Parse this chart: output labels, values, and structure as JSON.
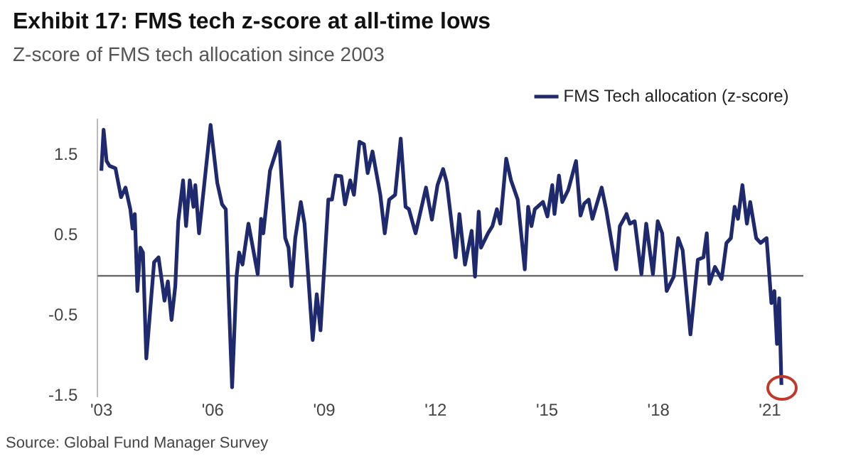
{
  "chart_data": {
    "type": "line",
    "title": "Exhibit 17: FMS tech z-score at all-time lows",
    "subtitle": "Z-score of FMS tech allocation since 2003",
    "x": [
      2003.0,
      2003.06,
      2003.14,
      2003.22,
      2003.38,
      2003.53,
      2003.65,
      2003.78,
      2003.84,
      2003.9,
      2003.97,
      2004.05,
      2004.12,
      2004.21,
      2004.42,
      2004.54,
      2004.7,
      2004.79,
      2004.89,
      2004.99,
      2005.07,
      2005.2,
      2005.28,
      2005.38,
      2005.48,
      2005.53,
      2005.63,
      2005.94,
      2006.12,
      2006.25,
      2006.35,
      2006.43,
      2006.52,
      2006.64,
      2006.71,
      2006.8,
      2006.96,
      2007.21,
      2007.3,
      2007.36,
      2007.54,
      2007.79,
      2007.95,
      2008.04,
      2008.12,
      2008.22,
      2008.37,
      2008.47,
      2008.69,
      2008.8,
      2008.9,
      2009.11,
      2009.21,
      2009.31,
      2009.46,
      2009.56,
      2009.7,
      2009.8,
      2009.95,
      2010.07,
      2010.17,
      2010.3,
      2010.51,
      2010.63,
      2010.75,
      2010.91,
      2011.06,
      2011.19,
      2011.28,
      2011.46,
      2011.74,
      2011.9,
      2012.05,
      2012.2,
      2012.3,
      2012.54,
      2012.64,
      2012.79,
      2012.97,
      2013.06,
      2013.16,
      2013.22,
      2013.41,
      2013.53,
      2013.65,
      2013.74,
      2013.9,
      2014.03,
      2014.21,
      2014.4,
      2014.49,
      2014.58,
      2014.67,
      2014.89,
      2015.01,
      2015.14,
      2015.2,
      2015.32,
      2015.41,
      2015.57,
      2015.78,
      2015.9,
      2016.0,
      2016.12,
      2016.22,
      2016.47,
      2016.59,
      2016.86,
      2016.96,
      2017.14,
      2017.23,
      2017.36,
      2017.54,
      2017.67,
      2017.85,
      2017.98,
      2018.1,
      2018.22,
      2018.41,
      2018.53,
      2018.65,
      2018.86,
      2019.06,
      2019.21,
      2019.3,
      2019.37,
      2019.52,
      2019.7,
      2019.83,
      2019.95,
      2020.05,
      2020.14,
      2020.26,
      2020.38,
      2020.47,
      2020.63,
      2020.75,
      2020.91,
      2021.04,
      2021.12,
      2021.19,
      2021.25,
      2021.31
    ],
    "series": [
      {
        "name": "FMS Tech allocation (z-score)",
        "color": "#1f2a6e",
        "values": [
          1.31,
          1.82,
          1.43,
          1.37,
          1.34,
          0.98,
          1.1,
          0.83,
          0.59,
          0.77,
          -0.19,
          0.35,
          0.29,
          -1.03,
          0.17,
          0.23,
          -0.31,
          -0.07,
          -0.55,
          -0.13,
          0.68,
          1.19,
          0.62,
          1.19,
          0.86,
          1.13,
          0.53,
          1.88,
          1.16,
          0.89,
          0.83,
          -0.28,
          -1.39,
          -0.01,
          0.29,
          0.14,
          0.65,
          0.02,
          0.71,
          0.53,
          1.31,
          1.67,
          0.47,
          0.35,
          -0.13,
          0.47,
          0.92,
          0.65,
          -0.8,
          -0.23,
          -0.68,
          0.95,
          0.95,
          1.25,
          1.24,
          0.89,
          1.19,
          1.01,
          1.67,
          1.64,
          1.28,
          1.55,
          1.01,
          0.53,
          0.95,
          1.01,
          1.71,
          0.86,
          0.83,
          0.53,
          1.1,
          0.7,
          1.13,
          1.33,
          1.16,
          0.23,
          0.77,
          0.14,
          0.56,
          -0.01,
          0.8,
          0.35,
          0.53,
          0.62,
          0.83,
          0.65,
          1.46,
          1.19,
          0.95,
          0.08,
          0.86,
          0.62,
          0.83,
          0.92,
          0.74,
          1.13,
          0.77,
          1.25,
          0.92,
          1.07,
          1.43,
          0.75,
          0.9,
          0.95,
          0.71,
          1.1,
          0.83,
          0.08,
          0.62,
          0.77,
          0.65,
          0.68,
          0.02,
          0.65,
          0.02,
          0.68,
          0.53,
          -0.19,
          -0.01,
          0.47,
          0.32,
          -0.73,
          0.2,
          0.23,
          0.53,
          -0.1,
          0.11,
          -0.04,
          0.41,
          0.47,
          0.86,
          0.71,
          1.13,
          0.65,
          0.92,
          0.47,
          0.41,
          0.47,
          -0.34,
          -0.19,
          -0.85,
          -0.28,
          -1.36
        ]
      }
    ],
    "xlim": [
      2002.9,
      2021.9
    ],
    "xticks": [
      {
        "value": 2003,
        "label": "'03"
      },
      {
        "value": 2006,
        "label": "'06"
      },
      {
        "value": 2009,
        "label": "'09"
      },
      {
        "value": 2012,
        "label": "'12"
      },
      {
        "value": 2015,
        "label": "'15"
      },
      {
        "value": 2018,
        "label": "'18"
      },
      {
        "value": 2021,
        "label": "'21"
      }
    ],
    "ylim": [
      -1.5,
      1.95
    ],
    "yticks": [
      {
        "value": -1.5,
        "label": "-1.5"
      },
      {
        "value": -0.5,
        "label": "-0.5"
      },
      {
        "value": 0.5,
        "label": "0.5"
      },
      {
        "value": 1.5,
        "label": "1.5"
      }
    ],
    "ref_lines": [
      {
        "axis": "y",
        "value": 0,
        "color": "#707070"
      }
    ],
    "grid": false,
    "legend": "top right",
    "marker": "none",
    "line_style": "solid",
    "annotations": [
      "Source: Global Fund Manager Survey"
    ]
  }
}
